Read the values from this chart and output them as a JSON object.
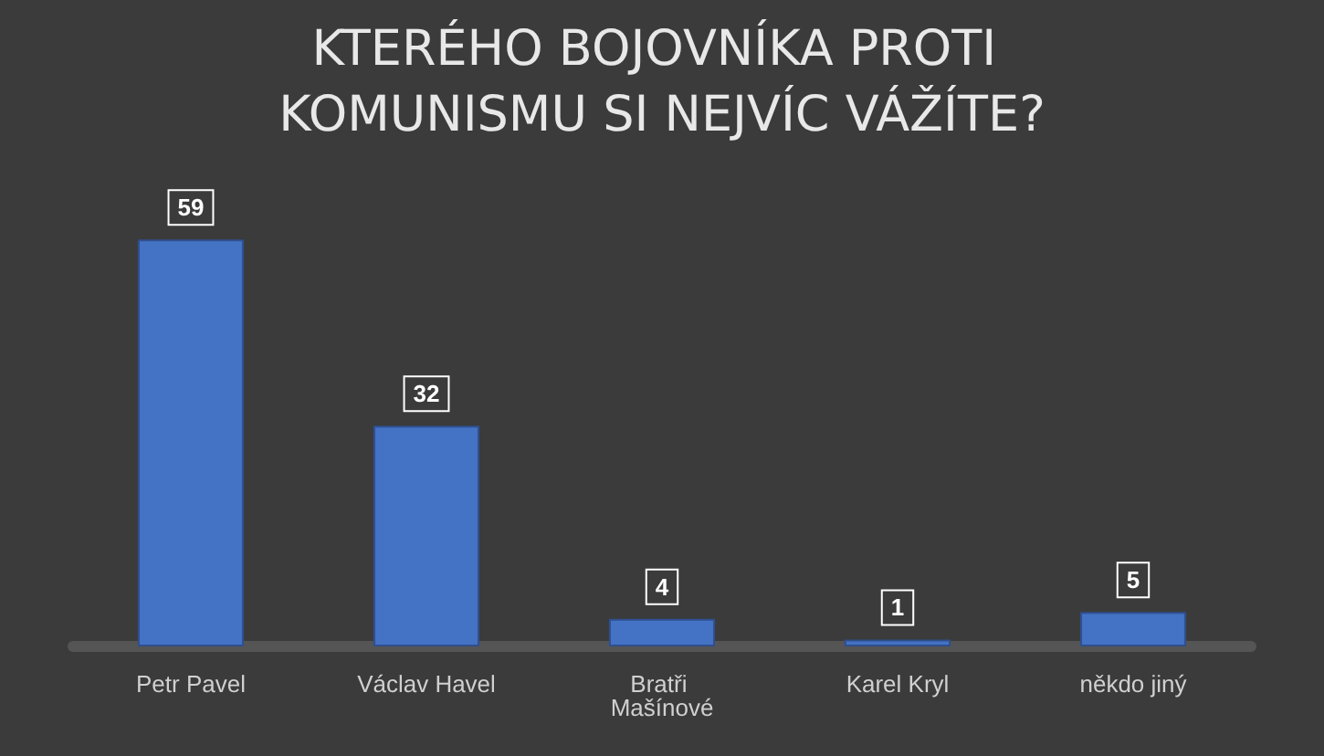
{
  "chart_data": {
    "type": "bar",
    "title": "KTERÉHO BOJOVNÍKA PROTI KOMUNISMU SI NEJVÍC VÁŽÍTE?",
    "categories": [
      "Petr Pavel",
      "Václav Havel",
      "Bratři Mašínové",
      "Karel Kryl",
      "někdo jiný"
    ],
    "values": [
      59,
      32,
      4,
      1,
      5
    ],
    "color": "#4472c4",
    "data_labels": true
  }
}
